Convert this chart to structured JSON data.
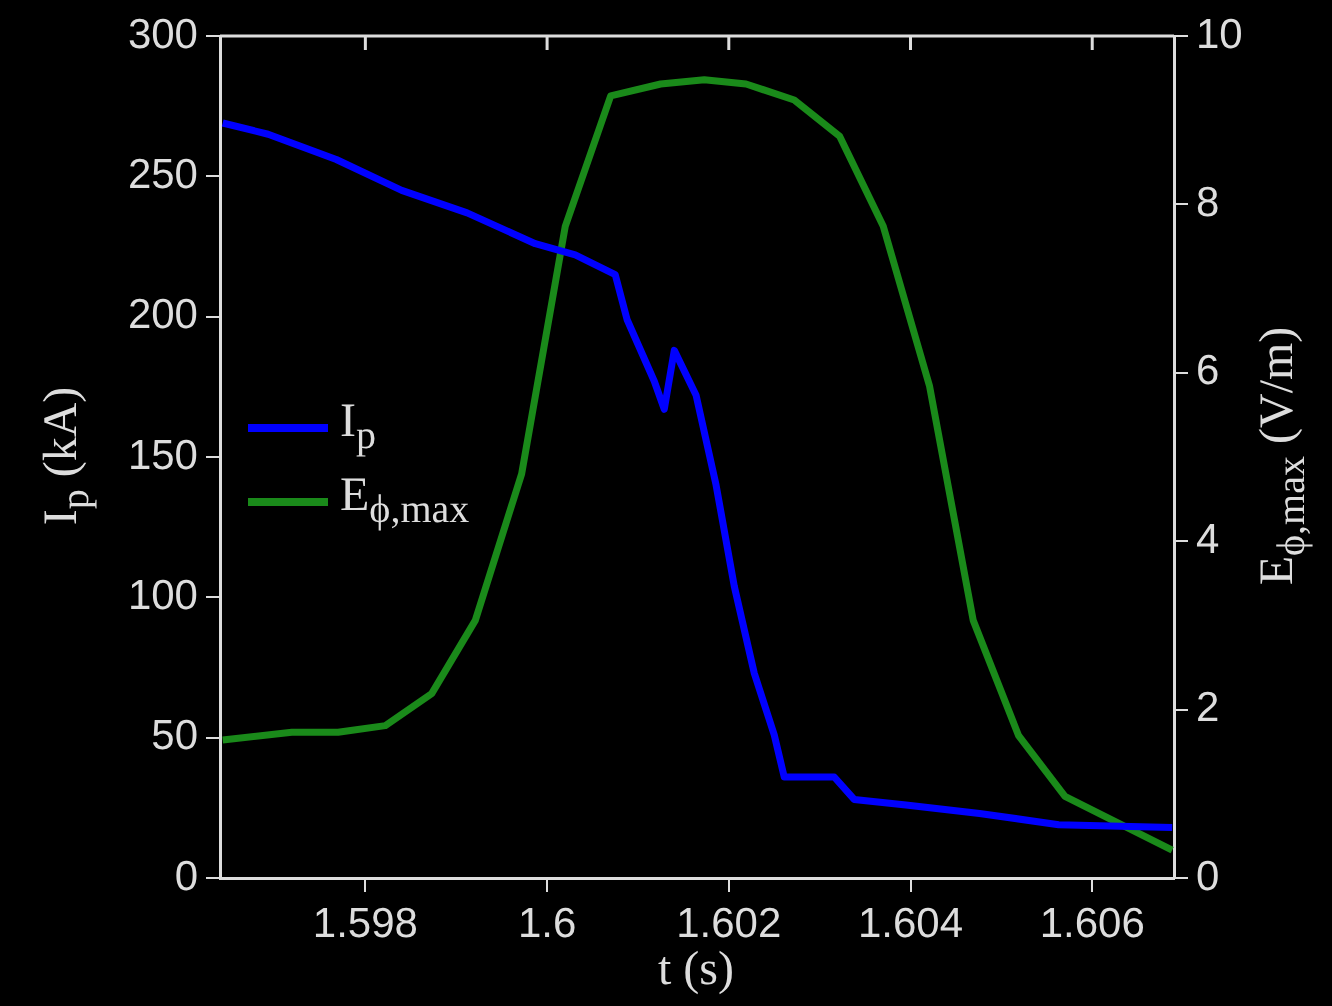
{
  "chart_data": {
    "type": "line",
    "xlabel": "t (s)",
    "ylabel": "I$_{p}$ (kA)",
    "y2label": "E$_{ϕ,max}$ (V/m)",
    "xlim": [
      1.5964,
      1.6069
    ],
    "xticks": [
      1.598,
      1.6,
      1.602,
      1.604,
      1.606
    ],
    "ylim": [
      0,
      300
    ],
    "yticks": [
      0,
      50,
      100,
      150,
      200,
      250,
      300
    ],
    "y2lim": [
      0,
      10
    ],
    "y2ticks": [
      0,
      2,
      4,
      6,
      8,
      10
    ],
    "grid": false,
    "legend": "left",
    "marker": "none",
    "line_style": "solid",
    "series": [
      {
        "name": "I$_{p}$",
        "color": "#0000ff",
        "x": [
          1.59643,
          1.59693,
          1.59768,
          1.5984,
          1.59912,
          1.59987,
          1.60031,
          1.60075,
          1.60088,
          1.60118,
          1.60129,
          1.6014,
          1.60164,
          1.60186,
          1.60206,
          1.60228,
          1.6025,
          1.60261,
          1.60316,
          1.60338,
          1.60395,
          1.60476,
          1.60563,
          1.60688
        ],
        "values": [
          269,
          265,
          256,
          245,
          237,
          226,
          222,
          215,
          199,
          177,
          167,
          188,
          172,
          140,
          104,
          73,
          51,
          36,
          36,
          28,
          26,
          23,
          19,
          18
        ]
      },
      {
        "name": "E$_{ϕ,max}$",
        "color": "#1a8a1a",
        "axis": "y2",
        "x": [
          1.59643,
          1.59719,
          1.5977,
          1.59822,
          1.59873,
          1.59921,
          1.59972,
          1.6002,
          1.6007,
          1.60125,
          1.60173,
          1.60219,
          1.60272,
          1.60322,
          1.6037,
          1.60421,
          1.60469,
          1.60519,
          1.6057,
          1.60688
        ],
        "values": [
          1.64,
          1.73,
          1.73,
          1.81,
          2.19,
          3.06,
          4.8,
          7.74,
          9.29,
          9.43,
          9.48,
          9.43,
          9.24,
          8.81,
          7.74,
          5.84,
          3.06,
          1.69,
          0.97,
          0.33
        ]
      }
    ]
  }
}
